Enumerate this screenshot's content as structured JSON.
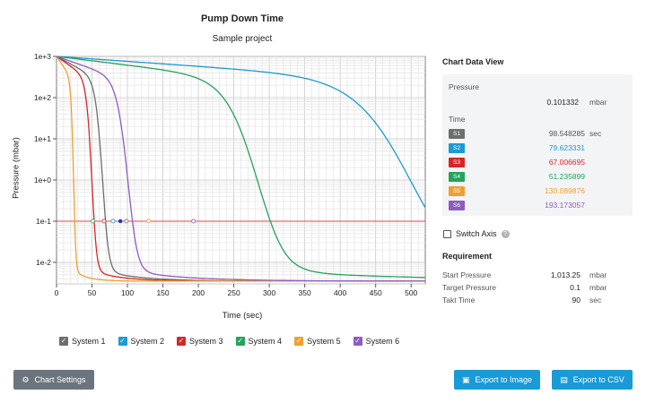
{
  "chart": {
    "title": "Pump Down Time",
    "subtitle": "Sample project",
    "xlabel": "Time (sec)",
    "ylabel": "Pressure (mbar)"
  },
  "legend": [
    {
      "label": "System 1",
      "color": "#6e6e6e"
    },
    {
      "label": "System 2",
      "color": "#1b9ad6"
    },
    {
      "label": "System 3",
      "color": "#d62728"
    },
    {
      "label": "System 4",
      "color": "#24a35a"
    },
    {
      "label": "System 5",
      "color": "#f0a030"
    },
    {
      "label": "System 6",
      "color": "#8e5cc1"
    }
  ],
  "chart_data": {
    "type": "line",
    "title": "Pump Down Time",
    "subtitle": "Sample project",
    "xlabel": "Time (sec)",
    "ylabel": "Pressure (mbar)",
    "xlim": [
      0,
      520
    ],
    "ylim": [
      0.003,
      1000
    ],
    "yscale": "log",
    "xticks": [
      0,
      50,
      100,
      150,
      200,
      250,
      300,
      350,
      400,
      450,
      500
    ],
    "yticks": [
      {
        "value": 1000,
        "label": "1e+3"
      },
      {
        "value": 100,
        "label": "1e+2"
      },
      {
        "value": 10,
        "label": "1e+1"
      },
      {
        "value": 1,
        "label": "1e+0"
      },
      {
        "value": 0.1,
        "label": "1e-1"
      },
      {
        "value": 0.01,
        "label": "1e-2"
      }
    ],
    "grid": true,
    "target_pressure_line": 0.1,
    "series": [
      {
        "name": "System 1",
        "color": "#6e6e6e",
        "t_target": 98.548285,
        "t_steep": 88,
        "tail_end": 260
      },
      {
        "name": "System 2",
        "color": "#1b9ad6",
        "t_target": 79.623331,
        "t_steep": 72,
        "tail_end": 230
      },
      {
        "name": "System 3",
        "color": "#d62728",
        "t_target": 67.006695,
        "t_steep": 60,
        "tail_end": 200
      },
      {
        "name": "System 4",
        "color": "#24a35a",
        "t_target": 51.235899,
        "t_steep": 43,
        "tail_end": 190
      },
      {
        "name": "System 5",
        "color": "#f0a030",
        "t_target": 130.089876,
        "t_steep": 120,
        "tail_end": 280
      },
      {
        "name": "System 6",
        "color": "#8e5cc1",
        "t_target": 193.173057,
        "t_steep": 180,
        "tail_end": 320
      }
    ],
    "marker": {
      "x": 90,
      "y": 0.1
    }
  },
  "data_view": {
    "title": "Chart Data View",
    "pressure_label": "Pressure",
    "pressure_value": "0.101332",
    "pressure_unit": "mbar",
    "time_label": "Time",
    "time_unit": "sec",
    "rows": [
      {
        "tag": "S1",
        "value": "98.548285",
        "color": "#6e6e6e"
      },
      {
        "tag": "S2",
        "value": "79.623331",
        "color": "#1b9ad6"
      },
      {
        "tag": "S3",
        "value": "67.006695",
        "color": "#d62728"
      },
      {
        "tag": "S4",
        "value": "51.235899",
        "color": "#24a35a"
      },
      {
        "tag": "S5",
        "value": "130.089876",
        "color": "#f0a030"
      },
      {
        "tag": "S6",
        "value": "193.173057",
        "color": "#8e5cc1"
      }
    ]
  },
  "switch_axis": {
    "label": "Switch Axis",
    "checked": false
  },
  "requirement": {
    "title": "Requirement",
    "rows": [
      {
        "label": "Start Pressure",
        "value": "1,013.25",
        "unit": "mbar"
      },
      {
        "label": "Target Pressure",
        "value": "0.1",
        "unit": "mbar"
      },
      {
        "label": "Takt Time",
        "value": "90",
        "unit": "sec"
      }
    ]
  },
  "buttons": {
    "settings": "Chart Settings",
    "export_image": "Export to Image",
    "export_csv": "Export to CSV"
  },
  "icons": {
    "settings": "gear-icon",
    "image": "image-icon",
    "csv": "table-icon",
    "help": "question-icon",
    "check": "check-icon"
  }
}
